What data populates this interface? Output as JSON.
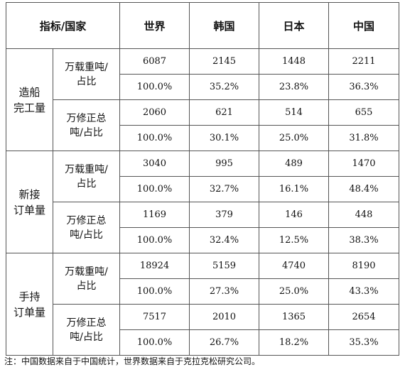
{
  "header": {
    "indicator": "指标/国家",
    "countries": [
      "世界",
      "韩国",
      "日本",
      "中国"
    ]
  },
  "groups": [
    {
      "name_lines": [
        "造船",
        "完工量"
      ],
      "units": [
        {
          "label_lines": [
            "万载重吨/",
            "占比"
          ],
          "values": [
            "6087",
            "2145",
            "1448",
            "2211"
          ],
          "shares": [
            "100.0%",
            "35.2%",
            "23.8%",
            "36.3%"
          ]
        },
        {
          "label_lines": [
            "万修正总",
            "吨/占比"
          ],
          "values": [
            "2060",
            "621",
            "514",
            "655"
          ],
          "shares": [
            "100.0%",
            "30.1%",
            "25.0%",
            "31.8%"
          ]
        }
      ]
    },
    {
      "name_lines": [
        "新接",
        "订单量"
      ],
      "units": [
        {
          "label_lines": [
            "万载重吨/",
            "占比"
          ],
          "values": [
            "3040",
            "995",
            "489",
            "1470"
          ],
          "shares": [
            "100.0%",
            "32.7%",
            "16.1%",
            "48.4%"
          ]
        },
        {
          "label_lines": [
            "万修正总",
            "吨/占比"
          ],
          "values": [
            "1169",
            "379",
            "146",
            "448"
          ],
          "shares": [
            "100.0%",
            "32.4%",
            "12.5%",
            "38.3%"
          ]
        }
      ]
    },
    {
      "name_lines": [
        "手持",
        "订单量"
      ],
      "units": [
        {
          "label_lines": [
            "万载重吨/",
            "占比"
          ],
          "values": [
            "18924",
            "5159",
            "4740",
            "8190"
          ],
          "shares": [
            "100.0%",
            "27.3%",
            "25.0%",
            "43.3%"
          ]
        },
        {
          "label_lines": [
            "万修正总",
            "吨/占比"
          ],
          "values": [
            "7517",
            "2010",
            "1365",
            "2654"
          ],
          "shares": [
            "100.0%",
            "26.7%",
            "18.2%",
            "35.3%"
          ]
        }
      ]
    }
  ],
  "note": "注：中国数据来自于中国统计，世界数据来自于克拉克松研究公司。"
}
